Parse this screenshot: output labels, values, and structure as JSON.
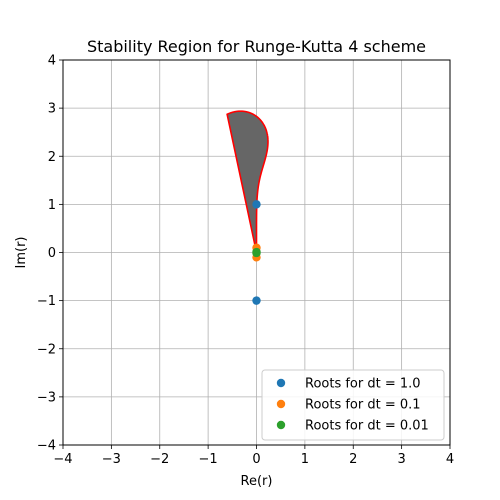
{
  "chart_data": {
    "type": "scatter",
    "title": "Stability Region for Runge-Kutta 4 scheme",
    "xlabel": "Re(r)",
    "ylabel": "Im(r)",
    "xlim": [
      -4,
      4
    ],
    "ylim": [
      -4,
      4
    ],
    "xticks": [
      -4,
      -3,
      -2,
      -1,
      0,
      1,
      2,
      3,
      4
    ],
    "yticks": [
      -4,
      -3,
      -2,
      -1,
      0,
      1,
      2,
      3,
      4
    ],
    "xtick_labels": [
      "−4",
      "−3",
      "−2",
      "−1",
      "0",
      "1",
      "2",
      "3",
      "4"
    ],
    "ytick_labels": [
      "−4",
      "−3",
      "−2",
      "−1",
      "0",
      "1",
      "2",
      "3",
      "4"
    ],
    "grid": true,
    "legend_position": "lower-right",
    "region": {
      "description_source": "RK4 stability boundary |1+z+z^2/2+z^3/6+z^4/24| = 1",
      "fill_color": "#666666",
      "edge_color": "#ff0000"
    },
    "series": [
      {
        "name": "Roots for dt = 1.0",
        "color": "#1f77b4",
        "x": [
          0,
          0
        ],
        "y": [
          1,
          -1
        ]
      },
      {
        "name": "Roots for dt = 0.1",
        "color": "#ff7f0e",
        "x": [
          0,
          0
        ],
        "y": [
          0.1,
          -0.1
        ]
      },
      {
        "name": "Roots for dt = 0.01",
        "color": "#2ca02c",
        "x": [
          0,
          0
        ],
        "y": [
          0.01,
          -0.01
        ]
      }
    ]
  }
}
